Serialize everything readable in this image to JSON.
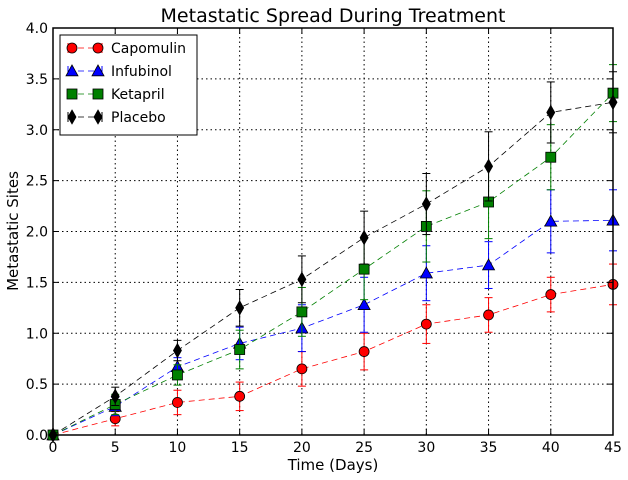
{
  "chart_data": {
    "type": "line",
    "title": "Metastatic Spread During Treatment",
    "xlabel": "Time (Days)",
    "ylabel": "Metastatic Sites",
    "xlim": [
      0,
      45
    ],
    "ylim": [
      0,
      4.0
    ],
    "x_ticks": [
      0,
      5,
      10,
      15,
      20,
      25,
      30,
      35,
      40,
      45
    ],
    "y_ticks": [
      0.0,
      0.5,
      1.0,
      1.5,
      2.0,
      2.5,
      3.0,
      3.5,
      4.0
    ],
    "x_tick_labels": [
      "0",
      "5",
      "10",
      "15",
      "20",
      "25",
      "30",
      "35",
      "40",
      "45"
    ],
    "y_tick_labels": [
      "0.0",
      "0.5",
      "1.0",
      "1.5",
      "2.0",
      "2.5",
      "3.0",
      "3.5",
      "4.0"
    ],
    "grid": true,
    "legend_position": "top-left",
    "x": [
      0,
      5,
      10,
      15,
      20,
      25,
      30,
      35,
      40,
      45
    ],
    "series": [
      {
        "name": "Capomulin",
        "color": "#ff0000",
        "marker": "circle",
        "values": [
          0.0,
          0.16,
          0.32,
          0.38,
          0.65,
          0.82,
          1.09,
          1.18,
          1.38,
          1.48
        ],
        "errors": [
          0.0,
          0.07,
          0.12,
          0.14,
          0.17,
          0.18,
          0.19,
          0.17,
          0.17,
          0.2
        ]
      },
      {
        "name": "Infubinol",
        "color": "#0000ff",
        "marker": "triangle",
        "values": [
          0.0,
          0.28,
          0.67,
          0.9,
          1.05,
          1.28,
          1.59,
          1.67,
          2.1,
          2.11
        ],
        "errors": [
          0.0,
          0.09,
          0.09,
          0.16,
          0.23,
          0.27,
          0.27,
          0.23,
          0.31,
          0.3
        ]
      },
      {
        "name": "Ketapril",
        "color": "#008000",
        "marker": "square",
        "values": [
          0.0,
          0.3,
          0.59,
          0.84,
          1.21,
          1.63,
          2.05,
          2.29,
          2.73,
          3.36
        ],
        "errors": [
          0.0,
          0.1,
          0.1,
          0.19,
          0.24,
          0.3,
          0.35,
          0.36,
          0.32,
          0.28
        ]
      },
      {
        "name": "Placebo",
        "color": "#000000",
        "marker": "diamond",
        "values": [
          0.0,
          0.38,
          0.83,
          1.25,
          1.53,
          1.94,
          2.27,
          2.64,
          3.17,
          3.27
        ],
        "errors": [
          0.0,
          0.09,
          0.1,
          0.18,
          0.23,
          0.26,
          0.3,
          0.34,
          0.3,
          0.3
        ]
      }
    ]
  }
}
